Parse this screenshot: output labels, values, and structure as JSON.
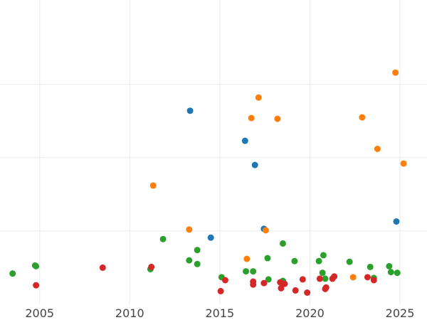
{
  "chart_data": {
    "type": "scatter",
    "title": "",
    "xlabel": "",
    "ylabel": "",
    "xlim": [
      2002.8,
      2026.5
    ],
    "ylim": [
      0,
      4.15
    ],
    "grid": true,
    "x_ticks": [
      2005,
      2010,
      2015,
      2020,
      2025
    ],
    "x_tick_labels": [
      "2005",
      "2010",
      "2015",
      "2020",
      "2025"
    ],
    "y_gridlines": [
      1.0,
      2.0,
      3.0
    ],
    "y_tick_labels_visible": false,
    "colors": {
      "blue": "#1f77b4",
      "orange": "#ff7f0e",
      "green": "#2ca02c",
      "red": "#d62728"
    },
    "series": [
      {
        "color": "#1f77b4",
        "x": [
          2013.35,
          2016.4,
          2016.95,
          2017.45,
          2014.5,
          2024.8
        ],
        "y": [
          2.64,
          2.23,
          1.9,
          1.03,
          0.91,
          1.13
        ]
      },
      {
        "color": "#ff7f0e",
        "x": [
          2024.75,
          2017.15,
          2016.75,
          2018.2,
          2022.9,
          2023.75,
          2025.2,
          2011.3,
          2013.3,
          2017.55,
          2016.5,
          2022.4
        ],
        "y": [
          3.16,
          2.82,
          2.54,
          2.53,
          2.55,
          2.12,
          1.92,
          1.62,
          1.02,
          1.01,
          0.62,
          0.37
        ]
      },
      {
        "color": "#2ca02c",
        "x": [
          2003.5,
          2004.8,
          2004.75,
          2011.15,
          2011.85,
          2013.3,
          2013.75,
          2013.75,
          2015.1,
          2016.45,
          2016.85,
          2017.65,
          2017.7,
          2018.5,
          2018.5,
          2019.15,
          2020.5,
          2020.75,
          2020.7,
          2020.85,
          2022.2,
          2023.35,
          2023.55,
          2024.5,
          2024.4,
          2024.85
        ],
        "y": [
          0.42,
          0.52,
          0.53,
          0.48,
          0.89,
          0.6,
          0.55,
          0.74,
          0.37,
          0.45,
          0.45,
          0.63,
          0.34,
          0.83,
          0.32,
          0.59,
          0.59,
          0.67,
          0.43,
          0.35,
          0.58,
          0.51,
          0.36,
          0.44,
          0.52,
          0.43
        ]
      },
      {
        "color": "#d62728",
        "x": [
          2004.8,
          2008.5,
          2011.2,
          2015.05,
          2015.3,
          2016.85,
          2016.85,
          2017.45,
          2018.35,
          2018.4,
          2018.6,
          2019.2,
          2019.6,
          2019.85,
          2020.55,
          2020.9,
          2020.85,
          2021.25,
          2021.35,
          2023.2,
          2023.55
        ],
        "y": [
          0.26,
          0.5,
          0.51,
          0.18,
          0.33,
          0.31,
          0.27,
          0.29,
          0.3,
          0.22,
          0.28,
          0.19,
          0.34,
          0.16,
          0.35,
          0.23,
          0.21,
          0.35,
          0.38,
          0.37,
          0.33
        ]
      }
    ]
  }
}
